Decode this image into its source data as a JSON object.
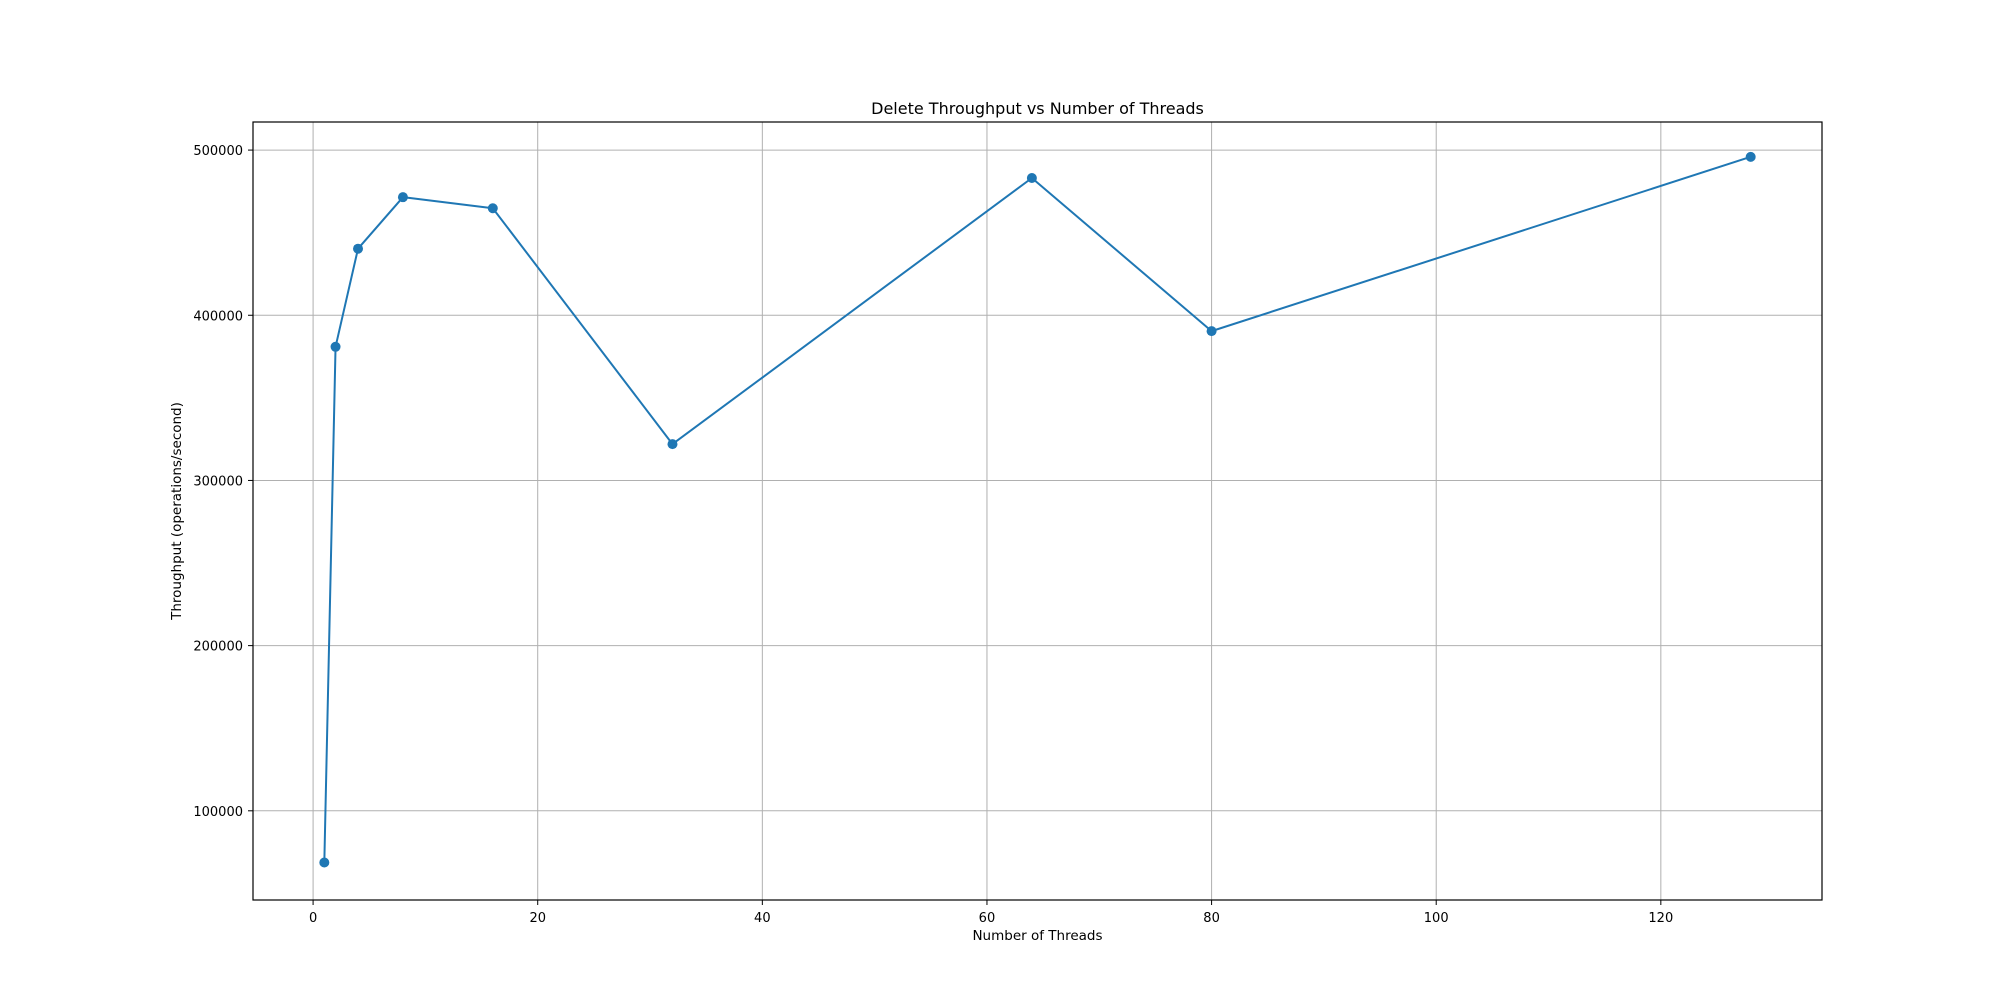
{
  "chart_data": {
    "type": "line",
    "title": "Delete Throughput vs Number of Threads",
    "xlabel": "Number of Threads",
    "ylabel": "Throughput (operations/second)",
    "xlim": [
      -5.35,
      134.35
    ],
    "ylim": [
      46000,
      517000
    ],
    "xticks": [
      0,
      20,
      40,
      60,
      80,
      100,
      120
    ],
    "yticks": [
      100000,
      200000,
      300000,
      400000,
      500000
    ],
    "grid": true,
    "series": [
      {
        "color": "#1f77b4",
        "marker": "circle",
        "x": [
          1,
          2,
          4,
          8,
          16,
          32,
          64,
          80,
          128
        ],
        "y": [
          68700,
          380900,
          440300,
          471500,
          464800,
          322000,
          483100,
          390400,
          495900
        ]
      }
    ]
  }
}
